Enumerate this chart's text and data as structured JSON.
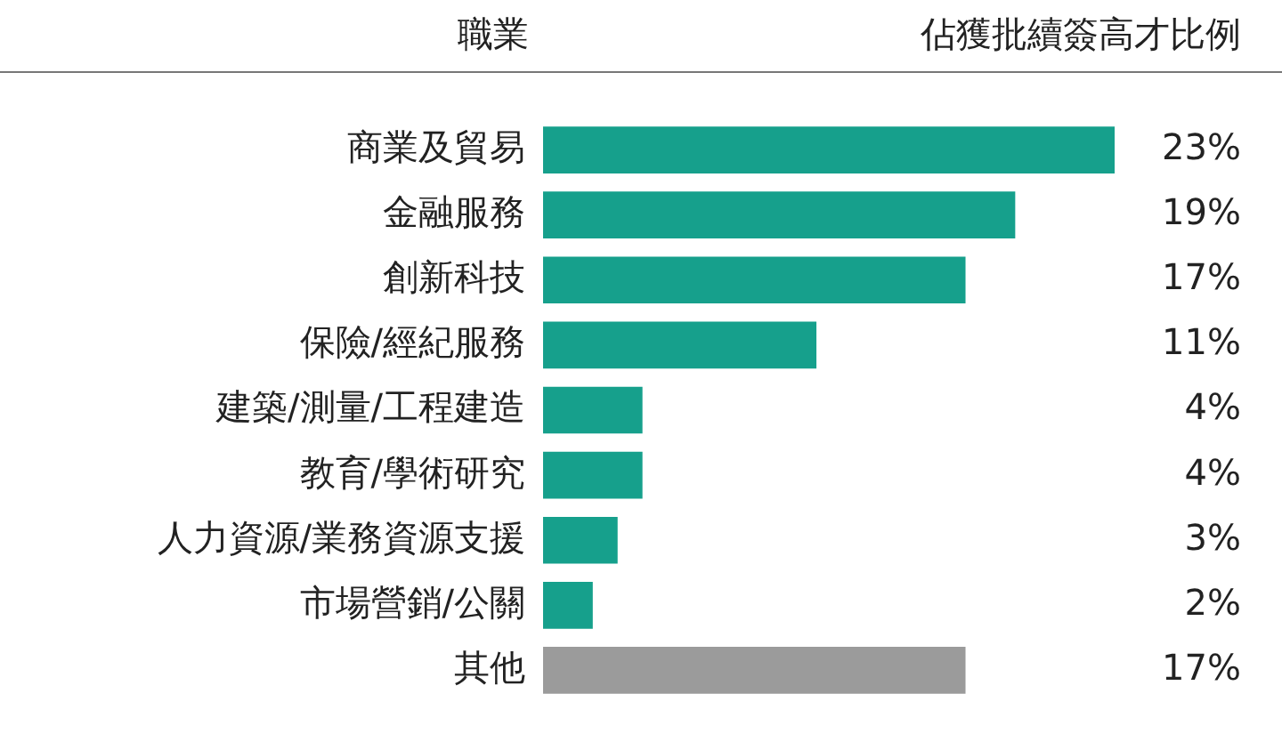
{
  "chart_data": {
    "type": "bar",
    "orientation": "horizontal",
    "ylabel": "職業",
    "xlabel": "佔獲批續簽高才比例",
    "categories": [
      "商業及貿易",
      "金融服務",
      "創新科技",
      "保險/經紀服務",
      "建築/測量/工程建造",
      "教育/學術研究",
      "人力資源/業務資源支援",
      "市場營銷/公關",
      "其他"
    ],
    "values": [
      23,
      19,
      17,
      11,
      4,
      4,
      3,
      2,
      17
    ],
    "colors": [
      "#16a08c",
      "#16a08c",
      "#16a08c",
      "#16a08c",
      "#16a08c",
      "#16a08c",
      "#16a08c",
      "#16a08c",
      "#9b9b9b"
    ],
    "value_labels": [
      "23%",
      "19%",
      "17%",
      "11%",
      "4%",
      "4%",
      "3%",
      "2%",
      "17%"
    ],
    "xlim": [
      0,
      23
    ],
    "tick_labels": "y",
    "legend": false
  }
}
